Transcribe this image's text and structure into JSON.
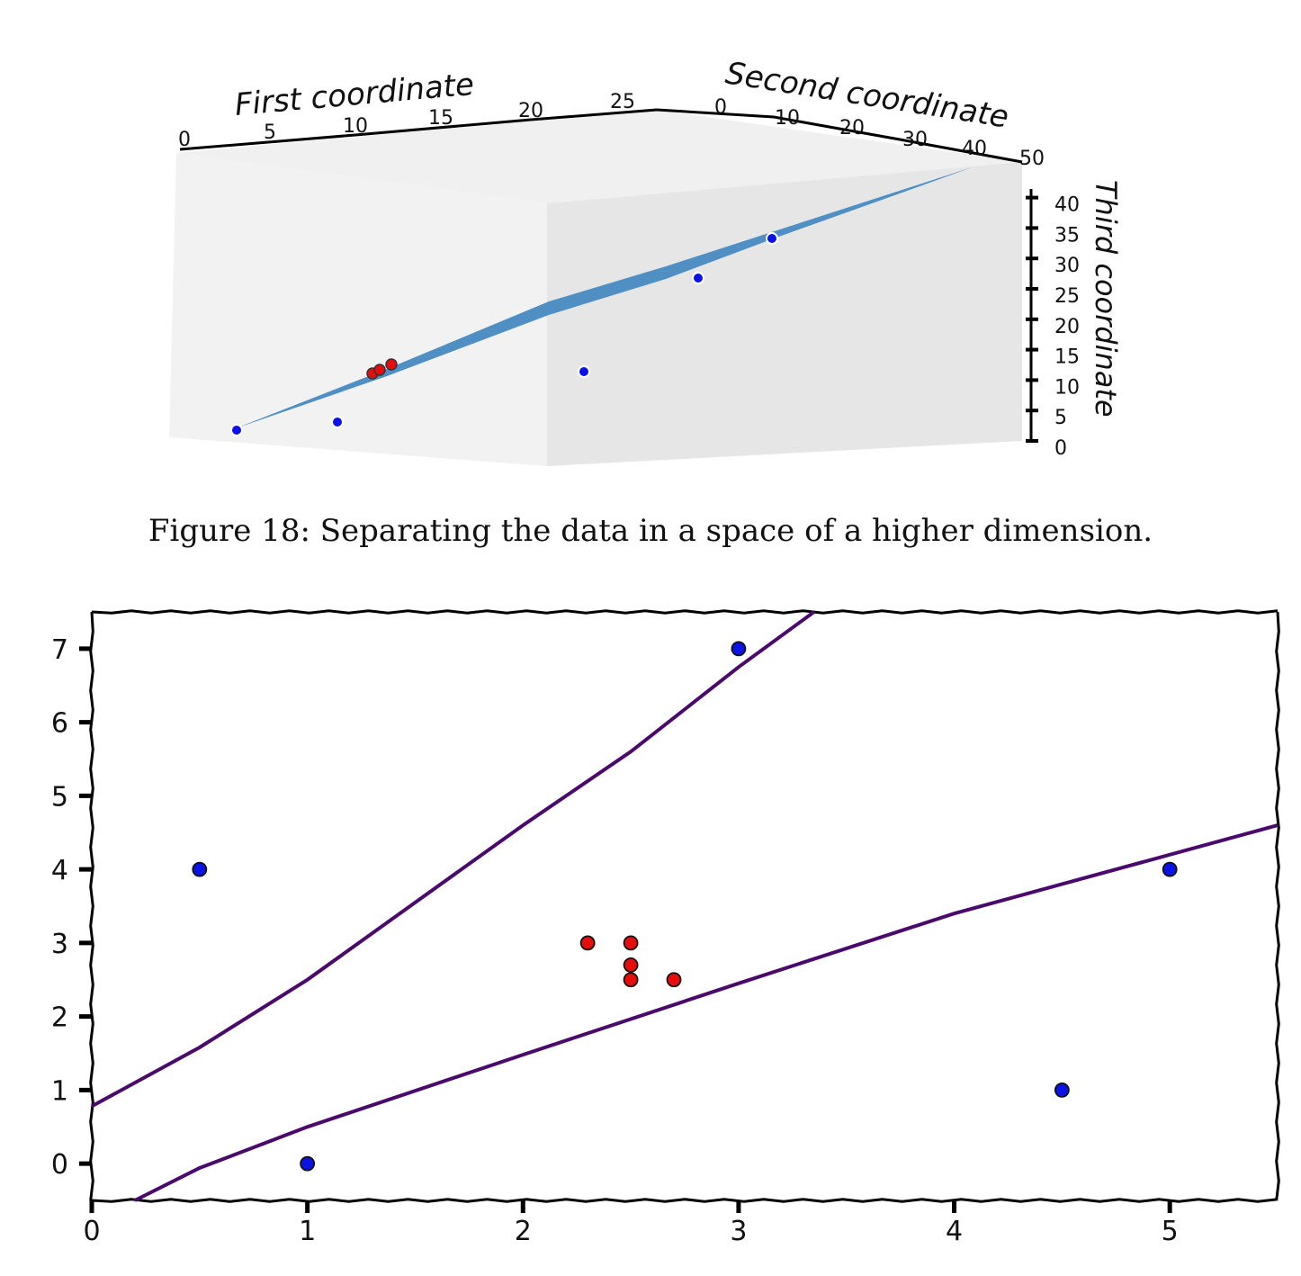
{
  "figure3d": {
    "x_axis_label": "First coordinate",
    "y_axis_label": "Second coordinate",
    "z_axis_label": "Third coordinate",
    "x_ticks": [
      "0",
      "5",
      "10",
      "15",
      "20",
      "25"
    ],
    "y_ticks": [
      "0",
      "10",
      "20",
      "30",
      "40",
      "50"
    ],
    "z_ticks": [
      "0",
      "5",
      "10",
      "15",
      "20",
      "25",
      "30",
      "35",
      "40"
    ]
  },
  "caption": "Figure 18: Separating the data in a space of a higher dimension.",
  "chart_data": {
    "type": "scatter",
    "x_ticks": [
      "0",
      "1",
      "2",
      "3",
      "4",
      "5"
    ],
    "y_ticks": [
      "0",
      "1",
      "2",
      "3",
      "4",
      "5",
      "6",
      "7"
    ],
    "xlim": [
      0,
      5.5
    ],
    "ylim": [
      -0.5,
      7.5
    ],
    "grid": false,
    "series": [
      {
        "color": "#0b12e6",
        "points": [
          [
            0.5,
            4
          ],
          [
            1,
            0
          ],
          [
            3,
            7
          ],
          [
            4.5,
            1
          ],
          [
            5,
            4
          ]
        ]
      },
      {
        "color": "#e60d0d",
        "points": [
          [
            2.3,
            3
          ],
          [
            2.5,
            3
          ],
          [
            2.5,
            2.7
          ],
          [
            2.5,
            2.5
          ],
          [
            2.7,
            2.5
          ]
        ]
      }
    ],
    "lines": [
      {
        "color": "#4a0a6b",
        "points": [
          [
            0,
            0.78
          ],
          [
            0.5,
            1.58
          ],
          [
            1,
            2.5
          ],
          [
            1.5,
            3.55
          ],
          [
            2,
            4.6
          ],
          [
            2.5,
            5.6
          ],
          [
            3,
            6.75
          ],
          [
            3.35,
            7.5
          ]
        ]
      },
      {
        "color": "#4a0a6b",
        "points": [
          [
            0.2,
            -0.5
          ],
          [
            0.5,
            -0.06
          ],
          [
            1,
            0.5
          ],
          [
            2,
            1.48
          ],
          [
            3,
            2.45
          ],
          [
            4,
            3.4
          ],
          [
            5.5,
            4.6
          ]
        ]
      }
    ]
  }
}
